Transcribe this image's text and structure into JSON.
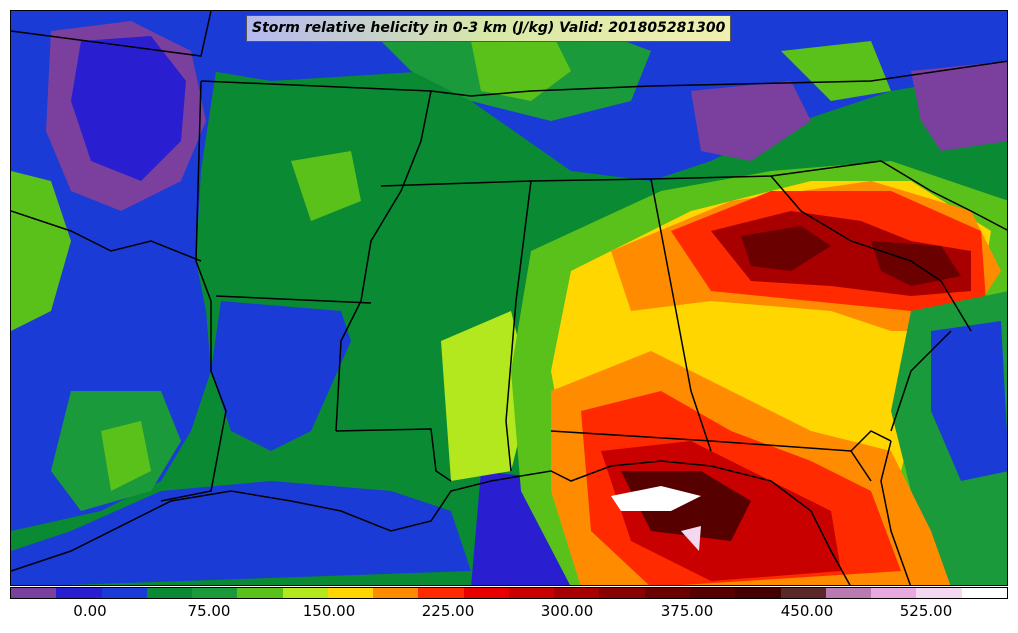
{
  "title": "Storm relative helicity in 0-3 km (J/kg) Valid: 201805281300",
  "colorbar": {
    "colors": [
      "#7b3f9e",
      "#2a1fd0",
      "#1a3bd6",
      "#0a8a33",
      "#1a9a3a",
      "#5ac01a",
      "#b4e81e",
      "#ffd600",
      "#ff8c00",
      "#ff2a00",
      "#e80000",
      "#c80000",
      "#a80000",
      "#880000",
      "#6a0000",
      "#560000",
      "#440000",
      "#5a2828",
      "#b87ab0",
      "#e8a8e0",
      "#f4d8f0",
      "#ffffff"
    ],
    "ticks": [
      "0.00",
      "75.00",
      "150.00",
      "225.00",
      "300.00",
      "375.00",
      "450.00",
      "525.00"
    ]
  }
}
